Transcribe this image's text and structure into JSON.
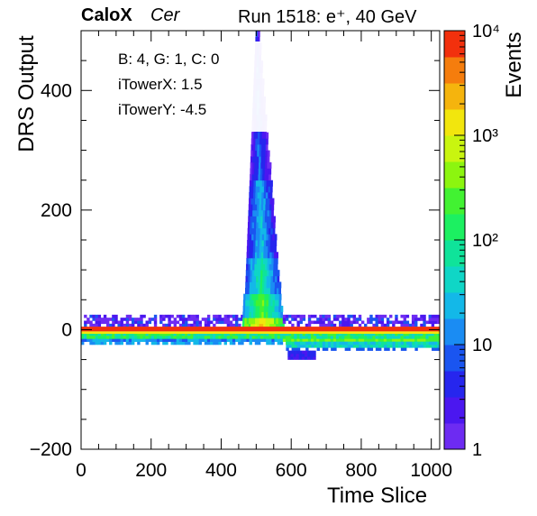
{
  "header": {
    "experiment": "CaloX",
    "channel": "Cer",
    "run_info": "Run 1518: e⁺, 40 GeV"
  },
  "info_box": {
    "board_line": "B: 4, G: 1, C: 0",
    "tower_x": "iTowerX: 1.5",
    "tower_y": "iTowerY: -4.5"
  },
  "chart_data": {
    "type": "heatmap",
    "xlabel": "Time Slice",
    "ylabel": "DRS Output",
    "zlabel": "Events",
    "xlim": [
      0,
      1024
    ],
    "ylim": [
      -200,
      500
    ],
    "zlim": [
      1,
      10000
    ],
    "z_scale": "log",
    "x_ticks": [
      0,
      200,
      400,
      600,
      800,
      1000
    ],
    "y_ticks": [
      -200,
      0,
      200,
      400
    ],
    "z_ticks": [
      "1",
      "10",
      "10²",
      "10³",
      "10⁴"
    ],
    "palette": [
      "#6d2bf2",
      "#4b17f0",
      "#2626ee",
      "#1a55f0",
      "#1a8cf3",
      "#13b8e8",
      "#0fd6c6",
      "#0fe39a",
      "#1cf061",
      "#42f232",
      "#8cf50f",
      "#c9f50f",
      "#f2e60d",
      "#f5b40d",
      "#f57d0d",
      "#f2300d"
    ],
    "regions": [
      {
        "name": "pedestal-band",
        "x": [
          0,
          1024
        ],
        "y": [
          -5,
          5
        ],
        "level": 15
      },
      {
        "name": "baseline-upper-noise",
        "x": [
          0,
          1024
        ],
        "y": [
          5,
          25
        ],
        "level": 2
      },
      {
        "name": "baseline-lower-noise",
        "x": [
          0,
          1024
        ],
        "y": [
          -25,
          -5
        ],
        "level": 3
      },
      {
        "name": "signal-pulse",
        "x": [
          460,
          580
        ],
        "y": [
          0,
          500
        ],
        "level": 7
      },
      {
        "name": "undershoot",
        "x": [
          580,
          1024
        ],
        "y": [
          -30,
          -10
        ],
        "level": 6
      },
      {
        "name": "undershoot-tail",
        "x": [
          590,
          670
        ],
        "y": [
          -50,
          -25
        ],
        "level": 2
      }
    ]
  }
}
